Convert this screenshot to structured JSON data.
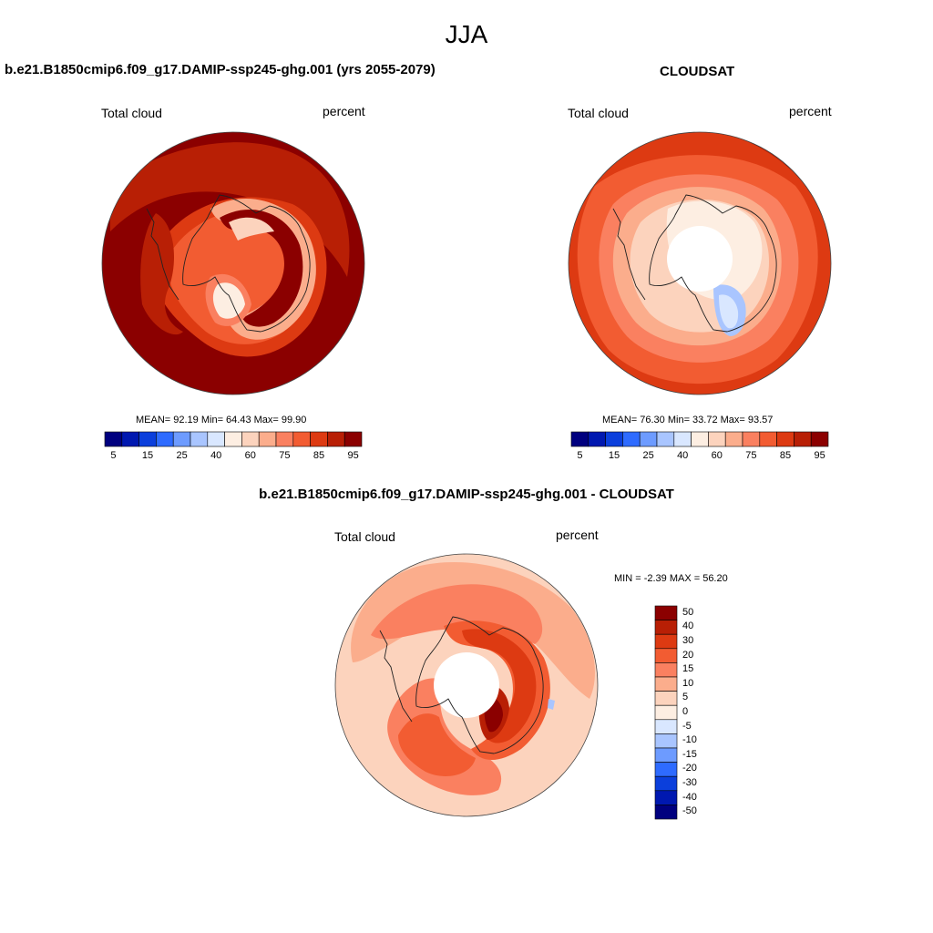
{
  "figure": {
    "title": "JJA"
  },
  "panels": [
    {
      "title": "b.e21.B1850cmip6.f09_g17.DAMIP-ssp245-ghg.001 (yrs 2055-2079)",
      "left_label": "Total cloud",
      "right_label": "percent",
      "stats": "MEAN=  92.19  Min=  64.43  Max=  99.90"
    },
    {
      "title": "CLOUDSAT",
      "left_label": "Total cloud",
      "right_label": "percent",
      "stats": "MEAN=  76.30  Min=  33.72  Max=  93.57"
    },
    {
      "title": "b.e21.B1850cmip6.f09_g17.DAMIP-ssp245-ghg.001 - CLOUDSAT",
      "left_label": "Total cloud",
      "right_label": "percent",
      "stats": "MIN =  -2.39 MAX =  56.20"
    }
  ],
  "colorbar_abs": {
    "colors": [
      "#00007f",
      "#0018b0",
      "#0b3fdc",
      "#2e6bff",
      "#6d9bff",
      "#a9c5ff",
      "#d9e7ff",
      "#fdeee2",
      "#fcd3bd",
      "#fbad8c",
      "#fa8060",
      "#f25c32",
      "#dd3a12",
      "#b81f05",
      "#8b0000"
    ],
    "labels": [
      "5",
      "15",
      "25",
      "40",
      "60",
      "75",
      "85",
      "95"
    ]
  },
  "colorbar_diff": {
    "colors": [
      "#8b0000",
      "#b81f05",
      "#dd3a12",
      "#f25c32",
      "#fa8060",
      "#fbad8c",
      "#fcd3bd",
      "#fdeee2",
      "#d9e7ff",
      "#a9c5ff",
      "#6d9bff",
      "#2e6bff",
      "#0b3fdc",
      "#0018b0",
      "#00007f"
    ],
    "labels": [
      "50",
      "40",
      "30",
      "20",
      "15",
      "10",
      "5",
      "0",
      "-5",
      "-10",
      "-15",
      "-20",
      "-30",
      "-40",
      "-50"
    ]
  }
}
